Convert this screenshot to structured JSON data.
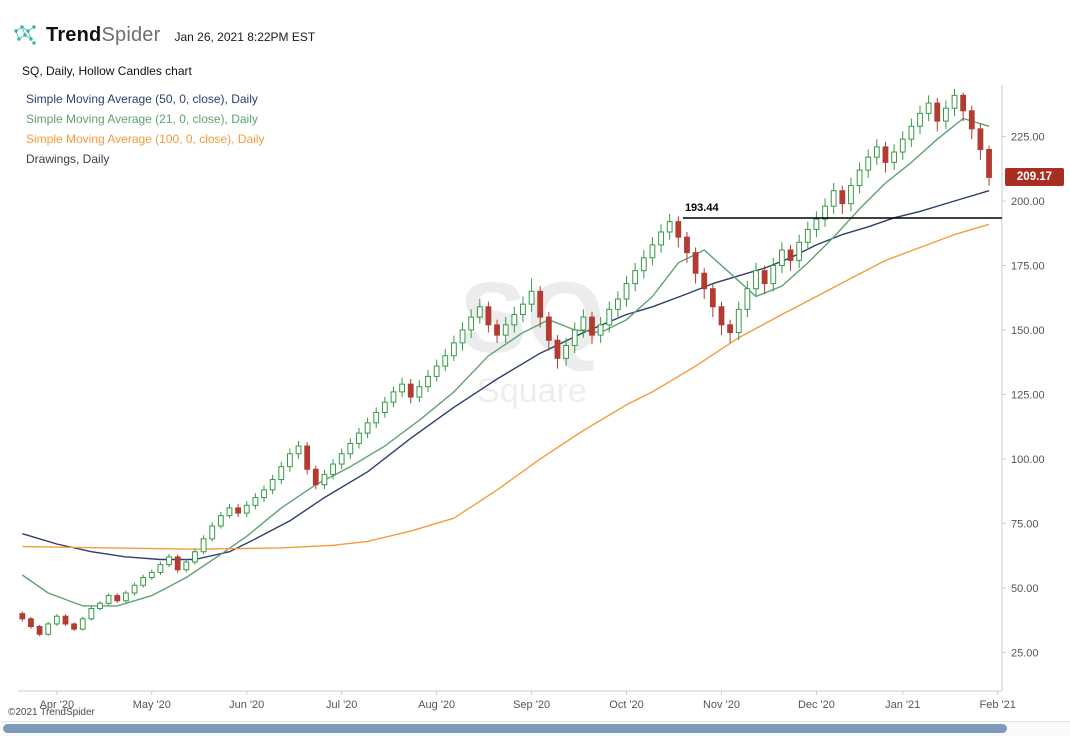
{
  "header": {
    "brand": {
      "bold": "Trend",
      "light": "Spider"
    },
    "timestamp": "Jan 26, 2021 8:22PM EST"
  },
  "chart_info": "SQ, Daily, Hollow Candles chart",
  "legend": [
    {
      "label": "Simple Moving Average (50, 0, close), Daily",
      "color": "#2b3f6b"
    },
    {
      "label": "Simple Moving Average (21, 0, close), Daily",
      "color": "#5fa271"
    },
    {
      "label": "Simple Moving Average (100, 0, close), Daily",
      "color": "#f39c3d"
    },
    {
      "label": "Drawings, Daily",
      "color": "#3d3d3d"
    }
  ],
  "watermark": {
    "symbol": "SQ",
    "name": "Square"
  },
  "footer": {
    "copyright": "©2021 TrendSpider"
  },
  "price_badge": {
    "value": "209.17"
  },
  "colors": {
    "up": "#359a46",
    "down": "#b23c32",
    "badge": "#a82e22",
    "axis": "#cccccc",
    "tick_text": "#555555",
    "hline": "#000000",
    "scroll_thumb": "#7d9ab8",
    "logo": "#35b5ac"
  },
  "chart_data": {
    "type": "candlestick",
    "title": "SQ, Daily, Hollow Candles chart",
    "symbol": "SQ",
    "timeframe": "Daily",
    "style": "hollow-candles",
    "ylim": [
      10,
      245
    ],
    "y_ticks": [
      25,
      50,
      75,
      100,
      125,
      150,
      175,
      200,
      225
    ],
    "x_labels": [
      {
        "label": "Apr '20",
        "i": 4
      },
      {
        "label": "May '20",
        "i": 15
      },
      {
        "label": "Jun '20",
        "i": 26
      },
      {
        "label": "Jul '20",
        "i": 37
      },
      {
        "label": "Aug '20",
        "i": 48
      },
      {
        "label": "Sep '20",
        "i": 59
      },
      {
        "label": "Oct '20",
        "i": 70
      },
      {
        "label": "Nov '20",
        "i": 81
      },
      {
        "label": "Dec '20",
        "i": 92
      },
      {
        "label": "Jan '21",
        "i": 102
      },
      {
        "label": "Feb '21",
        "i": 113
      }
    ],
    "last_price": 209.17,
    "hline": {
      "price": 193.44,
      "label": "193.44",
      "from_i": 77,
      "color": "#000000"
    },
    "candles": [
      [
        40,
        40.8,
        36.9,
        38
      ],
      [
        38,
        38.7,
        34.2,
        35
      ],
      [
        35,
        35.6,
        31.3,
        32
      ],
      [
        32,
        36.8,
        31.4,
        36
      ],
      [
        36,
        39.8,
        35.3,
        39
      ],
      [
        39,
        39.7,
        35.2,
        36
      ],
      [
        36,
        36.6,
        33.3,
        34
      ],
      [
        34,
        38.8,
        33.4,
        38
      ],
      [
        38,
        42.9,
        37.3,
        42
      ],
      [
        42,
        44.9,
        41.2,
        44
      ],
      [
        44,
        47.9,
        43.2,
        47
      ],
      [
        47,
        47.9,
        44.1,
        45
      ],
      [
        45,
        49,
        44.2,
        48
      ],
      [
        48,
        52,
        47.1,
        51
      ],
      [
        51,
        55.1,
        50.1,
        54
      ],
      [
        54,
        57.1,
        53,
        56
      ],
      [
        56,
        60.2,
        55,
        59
      ],
      [
        59,
        63.2,
        58,
        62
      ],
      [
        62,
        63,
        55.9,
        57
      ],
      [
        57,
        61.2,
        56,
        60
      ],
      [
        60,
        65.3,
        59,
        64
      ],
      [
        64,
        70.4,
        63,
        69
      ],
      [
        69,
        75.4,
        68,
        74
      ],
      [
        74,
        79.5,
        73,
        78
      ],
      [
        78,
        82.6,
        77,
        81
      ],
      [
        81,
        82.6,
        77.5,
        79
      ],
      [
        79,
        83.6,
        77.5,
        82
      ],
      [
        82,
        86.7,
        80.5,
        85
      ],
      [
        85,
        89.7,
        83.3,
        88
      ],
      [
        88,
        93.8,
        86.3,
        92
      ],
      [
        92,
        98.9,
        90.2,
        97
      ],
      [
        97,
        104,
        95,
        102
      ],
      [
        102,
        107,
        100,
        105
      ],
      [
        105,
        106.5,
        94,
        96
      ],
      [
        96,
        97.4,
        88.2,
        90
      ],
      [
        90,
        95.8,
        88.2,
        94
      ],
      [
        94,
        99.9,
        92.1,
        98
      ],
      [
        98,
        104,
        96,
        102
      ],
      [
        102,
        108,
        100,
        106
      ],
      [
        106,
        112,
        104,
        110
      ],
      [
        110,
        116,
        108,
        114
      ],
      [
        114,
        120,
        112,
        118
      ],
      [
        118,
        124,
        116,
        122
      ],
      [
        122,
        128,
        120,
        126
      ],
      [
        126,
        131.5,
        124,
        129
      ],
      [
        129,
        131,
        121.5,
        124
      ],
      [
        124,
        130.5,
        122,
        128
      ],
      [
        128,
        134.5,
        126,
        132
      ],
      [
        132,
        138.5,
        130,
        136
      ],
      [
        136,
        142.7,
        134,
        140
      ],
      [
        140,
        147.8,
        138,
        145
      ],
      [
        145,
        153,
        142,
        150
      ],
      [
        150,
        158,
        147,
        155
      ],
      [
        155,
        162,
        152.5,
        159
      ],
      [
        159,
        161,
        149,
        152
      ],
      [
        152,
        154,
        145,
        148
      ],
      [
        148,
        155,
        145,
        152
      ],
      [
        152,
        159,
        149,
        156
      ],
      [
        156,
        163,
        153,
        160
      ],
      [
        160,
        170,
        157,
        165
      ],
      [
        165,
        167,
        151,
        155
      ],
      [
        155,
        157,
        142,
        146
      ],
      [
        146,
        148,
        135,
        139
      ],
      [
        139,
        147,
        136,
        144
      ],
      [
        144,
        153,
        141,
        150
      ],
      [
        150,
        158,
        147,
        155
      ],
      [
        155,
        157,
        144.5,
        148
      ],
      [
        148,
        155,
        145,
        152
      ],
      [
        152,
        161,
        149,
        158
      ],
      [
        158,
        165,
        155,
        162
      ],
      [
        162,
        171,
        159,
        168
      ],
      [
        168,
        176,
        165,
        173
      ],
      [
        173,
        181,
        170,
        178
      ],
      [
        178,
        186,
        175,
        183
      ],
      [
        183,
        191,
        180,
        188
      ],
      [
        188,
        195,
        185,
        192
      ],
      [
        192,
        194,
        182,
        186
      ],
      [
        186,
        188,
        176,
        180
      ],
      [
        180,
        182,
        168,
        172
      ],
      [
        172,
        174,
        162,
        166
      ],
      [
        166,
        168,
        155,
        159
      ],
      [
        159,
        161,
        148,
        152
      ],
      [
        152,
        154,
        145,
        149
      ],
      [
        149,
        161,
        146,
        158
      ],
      [
        158,
        169,
        155,
        166
      ],
      [
        166,
        176,
        163,
        173
      ],
      [
        173,
        175,
        164,
        168
      ],
      [
        168,
        178,
        165,
        175
      ],
      [
        175,
        184,
        172,
        181
      ],
      [
        181,
        183,
        173,
        177
      ],
      [
        177,
        187,
        174,
        184
      ],
      [
        184,
        192,
        181,
        189
      ],
      [
        189,
        196,
        186,
        193
      ],
      [
        193,
        201,
        190,
        198
      ],
      [
        198,
        207,
        195,
        204
      ],
      [
        204,
        206,
        195,
        199
      ],
      [
        199,
        209,
        196,
        206
      ],
      [
        206,
        215,
        203,
        212
      ],
      [
        212,
        220,
        209,
        217
      ],
      [
        217,
        224,
        214,
        221
      ],
      [
        221,
        223,
        211,
        215
      ],
      [
        215,
        222,
        212,
        219
      ],
      [
        219,
        227,
        216,
        224
      ],
      [
        224,
        232,
        221,
        229
      ],
      [
        229,
        237,
        226,
        234
      ],
      [
        234,
        241,
        231,
        238
      ],
      [
        238,
        240,
        227,
        231
      ],
      [
        231,
        239,
        228,
        236
      ],
      [
        236,
        243.5,
        233,
        241
      ],
      [
        241,
        242,
        231,
        235
      ],
      [
        235,
        237,
        224,
        228
      ],
      [
        228,
        230,
        216,
        220
      ],
      [
        220,
        221.5,
        206,
        209.17
      ]
    ],
    "overlays": [
      {
        "name": "SMA 50",
        "color": "#2b3f6b",
        "points": [
          [
            0,
            71
          ],
          [
            4,
            67
          ],
          [
            8,
            64
          ],
          [
            12,
            62
          ],
          [
            16,
            61
          ],
          [
            20,
            61
          ],
          [
            24,
            64
          ],
          [
            27,
            69
          ],
          [
            31,
            76
          ],
          [
            35,
            85
          ],
          [
            40,
            95
          ],
          [
            45,
            108
          ],
          [
            50,
            120
          ],
          [
            55,
            131
          ],
          [
            60,
            141
          ],
          [
            65,
            149
          ],
          [
            70,
            156
          ],
          [
            73,
            159
          ],
          [
            77,
            164
          ],
          [
            80,
            168
          ],
          [
            83,
            171
          ],
          [
            86,
            174
          ],
          [
            89,
            178
          ],
          [
            92,
            183
          ],
          [
            95,
            187
          ],
          [
            98,
            190
          ],
          [
            101,
            193.5
          ],
          [
            104,
            196
          ],
          [
            108,
            200
          ],
          [
            112,
            204
          ]
        ]
      },
      {
        "name": "SMA 21",
        "color": "#5fa271",
        "points": [
          [
            0,
            55
          ],
          [
            3,
            48
          ],
          [
            7,
            43
          ],
          [
            11,
            43
          ],
          [
            15,
            47
          ],
          [
            19,
            54
          ],
          [
            23,
            63
          ],
          [
            26,
            70
          ],
          [
            30,
            81
          ],
          [
            34,
            90
          ],
          [
            38,
            97
          ],
          [
            42,
            105
          ],
          [
            46,
            115
          ],
          [
            50,
            126
          ],
          [
            54,
            140
          ],
          [
            58,
            149
          ],
          [
            61,
            154
          ],
          [
            64,
            150
          ],
          [
            67,
            149
          ],
          [
            70,
            154
          ],
          [
            73,
            163
          ],
          [
            76,
            176
          ],
          [
            79,
            181
          ],
          [
            82,
            172
          ],
          [
            85,
            163
          ],
          [
            88,
            167
          ],
          [
            91,
            176
          ],
          [
            94,
            186
          ],
          [
            97,
            197
          ],
          [
            100,
            207
          ],
          [
            103,
            215
          ],
          [
            106,
            224
          ],
          [
            109,
            232
          ],
          [
            112,
            229
          ]
        ]
      },
      {
        "name": "SMA 100",
        "color": "#f39c3d",
        "points": [
          [
            0,
            66
          ],
          [
            10,
            65.5
          ],
          [
            20,
            65
          ],
          [
            30,
            65.5
          ],
          [
            36,
            66.5
          ],
          [
            40,
            68
          ],
          [
            45,
            72
          ],
          [
            50,
            77
          ],
          [
            55,
            88
          ],
          [
            60,
            100
          ],
          [
            65,
            111
          ],
          [
            70,
            121
          ],
          [
            73,
            126
          ],
          [
            78,
            136
          ],
          [
            83,
            147
          ],
          [
            88,
            156
          ],
          [
            92,
            163
          ],
          [
            96,
            170
          ],
          [
            100,
            177
          ],
          [
            104,
            182
          ],
          [
            108,
            187
          ],
          [
            112,
            191
          ]
        ]
      }
    ]
  }
}
